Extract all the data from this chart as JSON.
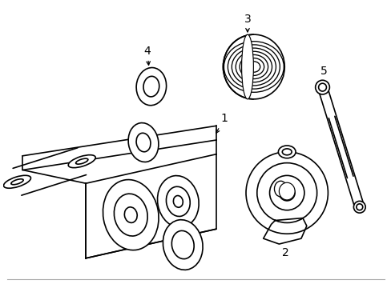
{
  "background_color": "#ffffff",
  "line_color": "#000000",
  "line_width": 1.2,
  "fig_width": 4.89,
  "fig_height": 3.6,
  "dpi": 100,
  "belt_color": "#000000",
  "label_fontsize": 10
}
